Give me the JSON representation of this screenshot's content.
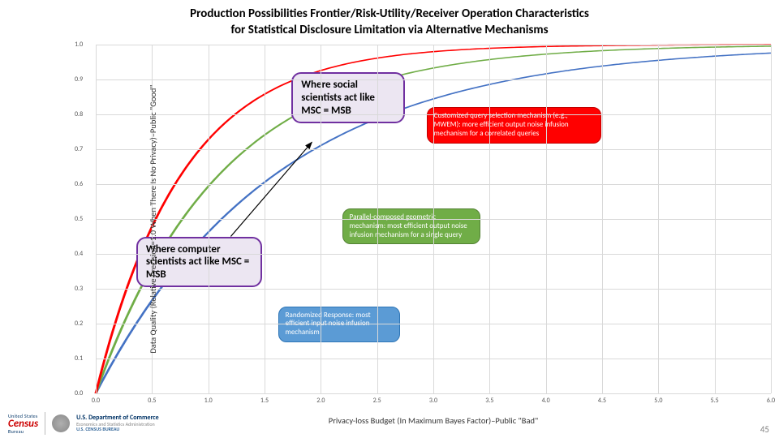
{
  "title_line1": "Production Possibilities Frontier/Risk-Utility/Receiver Operation Characteristics",
  "title_line2": "for Statistical Disclosure Limitation via Alternative Mechanisms",
  "y_axis_label": "Data Quality (Relative Precision=1.0 When There Is No Privacy)–Public \"Good\"",
  "x_axis_label": "Privacy-loss Budget (In Maximum Bayes Factor)–Public \"Bad\"",
  "chart": {
    "type": "line",
    "xlim": [
      0.0,
      6.0
    ],
    "ylim": [
      0.0,
      1.0
    ],
    "xtick_step": 0.5,
    "ytick_step": 0.1,
    "grid_color": "#d9d9d9",
    "background_color": "#ffffff",
    "series": [
      {
        "name": "randomized-response",
        "color": "#4472c4",
        "stroke_width": 3,
        "rate": 0.62
      },
      {
        "name": "parallel-geometric",
        "color": "#70ad47",
        "stroke_width": 3,
        "rate": 0.9
      },
      {
        "name": "customized-query",
        "color": "#ff0000",
        "stroke_width": 3,
        "rate": 1.3
      }
    ]
  },
  "textbox_social": "Where social scientists act like MSC = MSB",
  "textbox_computer": "Where computer scientists act like MSC = MSB",
  "callout_red": "Customized query selection mechanism (e.g., MWEM): more efficient output noise infusion mechanism for a correlated queries",
  "callout_green": "Parallel-composed geometric mechanism: most efficient output noise infusion mechanism for a single query",
  "callout_blue": "Randomized Response: most efficient input noise infusion mechanism",
  "callout_red_bg": "#ff0000",
  "callout_green_bg": "#70ad47",
  "callout_blue_bg": "#5b9bd5",
  "textbox_border": "#7030a0",
  "textbox_bg": "#ece6f2",
  "footer": {
    "census_word": "Census",
    "census_top": "United States",
    "census_bottom": "Bureau",
    "doc_line1": "U.S. Department of Commerce",
    "doc_line2": "Economics and Statistics Administration",
    "doc_line3": "U.S. CENSUS BUREAU"
  },
  "page_number": "45"
}
